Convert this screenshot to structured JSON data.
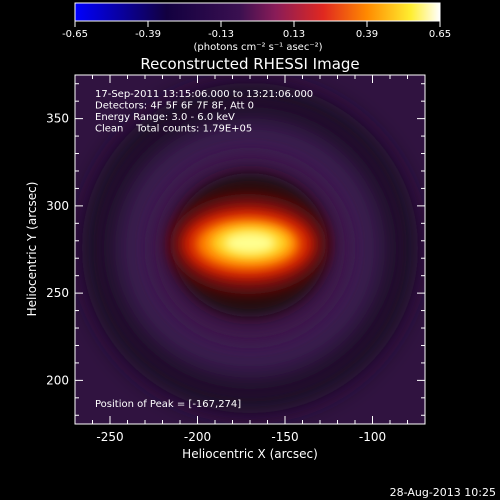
{
  "chart_data": {
    "type": "heatmap",
    "title": "Reconstructed RHESSI Image",
    "xlabel": "Heliocentric X (arcsec)",
    "ylabel": "Heliocentric Y (arcsec)",
    "xlim": [
      -270,
      -70
    ],
    "ylim": [
      175,
      375
    ],
    "xticks": [
      "-250",
      "-200",
      "-150",
      "-100"
    ],
    "yticks": [
      "200",
      "250",
      "300",
      "350"
    ],
    "colorbar": {
      "range": [
        -0.65,
        0.65
      ],
      "ticks": [
        "-0.65",
        "-0.39",
        "-0.13",
        "0.13",
        "0.39",
        "0.65"
      ],
      "units": "(photons cm⁻² s⁻¹ asec⁻²)",
      "colormap": [
        "#0000ff",
        "#000000",
        "#3a1050",
        "#a0205a",
        "#ff3000",
        "#ff9000",
        "#ffff40",
        "#ffffff"
      ]
    },
    "peak": {
      "x": -167,
      "y": 274,
      "value": 0.65
    },
    "annotations": [
      "17-Sep-2011 13:15:06.000 to 13:21:06.000",
      "Detectors: 4F 5F 6F 7F 8F, Att 0",
      "Energy Range: 3.0 - 6.0 keV",
      "Clean    Total counts: 1.79E+05"
    ],
    "peak_label": "Position of Peak = [-167,274]",
    "grid": false
  },
  "timestamp": "28-Aug-2013 10:25"
}
